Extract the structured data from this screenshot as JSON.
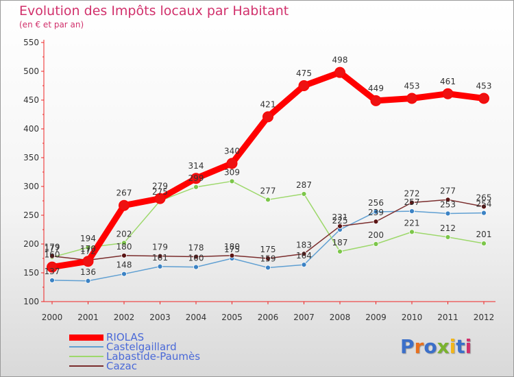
{
  "header": {
    "title": "Evolution des Impôts locaux par Habitant",
    "subtitle": "(en € et par an)"
  },
  "brand": {
    "text": "Proxiti",
    "colors": [
      "#3b6fc9",
      "#e8701e",
      "#3b6fc9",
      "#7ab32e",
      "#f2b61a",
      "#3b6fc9",
      "#d1306b"
    ]
  },
  "chart_data": {
    "type": "line",
    "title": "Evolution des Impôts locaux par Habitant",
    "subtitle": "(en € et par an)",
    "x": [
      "2000",
      "2001",
      "2002",
      "2003",
      "2004",
      "2005",
      "2006",
      "2007",
      "2008",
      "2009",
      "2010",
      "2011",
      "2012"
    ],
    "ylim": [
      100,
      550
    ],
    "yticks": [
      100,
      150,
      200,
      250,
      300,
      350,
      400,
      450,
      500,
      550
    ],
    "grid": false,
    "legend": "bottom-left",
    "series": [
      {
        "name": "RIOLAS",
        "color": "#ff0000",
        "point_color": "#ee1111",
        "values": [
          160,
          170,
          267,
          279,
          314,
          340,
          421,
          475,
          498,
          449,
          453,
          461,
          453
        ],
        "labels": [
          "160",
          "170",
          "267",
          "279",
          "314",
          "340",
          "421",
          "475",
          "498",
          "449",
          "453",
          "461",
          "453"
        ]
      },
      {
        "name": "Castelgaillard",
        "color": "#5f9fd2",
        "point_color": "#3b82c4",
        "values": [
          137,
          136,
          148,
          161,
          160,
          175,
          159,
          164,
          225,
          256,
          257,
          253,
          254
        ],
        "labels": [
          "137",
          "136",
          "148",
          "161",
          "160",
          "175",
          "159",
          "164",
          "225",
          "256",
          "257",
          "253",
          "254"
        ]
      },
      {
        "name": "Labastide-Paumès",
        "color": "#9dd86b",
        "point_color": "#7cc64a",
        "values": [
          177,
          194,
          202,
          275,
          299,
          309,
          277,
          287,
          187,
          200,
          221,
          212,
          201
        ],
        "labels": [
          "177",
          "194",
          "202",
          "275",
          "299",
          "309",
          "277",
          "287",
          "187",
          "200",
          "221",
          "212",
          "201"
        ]
      },
      {
        "name": "Cazac",
        "color": "#7a2c2c",
        "point_color": "#5a1414",
        "values": [
          179,
          172,
          180,
          179,
          178,
          180,
          175,
          183,
          231,
          239,
          272,
          277,
          265
        ],
        "labels": [
          "179",
          "172",
          "180",
          "179",
          "178",
          "180",
          "175",
          "183",
          "231",
          "239",
          "272",
          "277",
          "265"
        ]
      }
    ]
  }
}
